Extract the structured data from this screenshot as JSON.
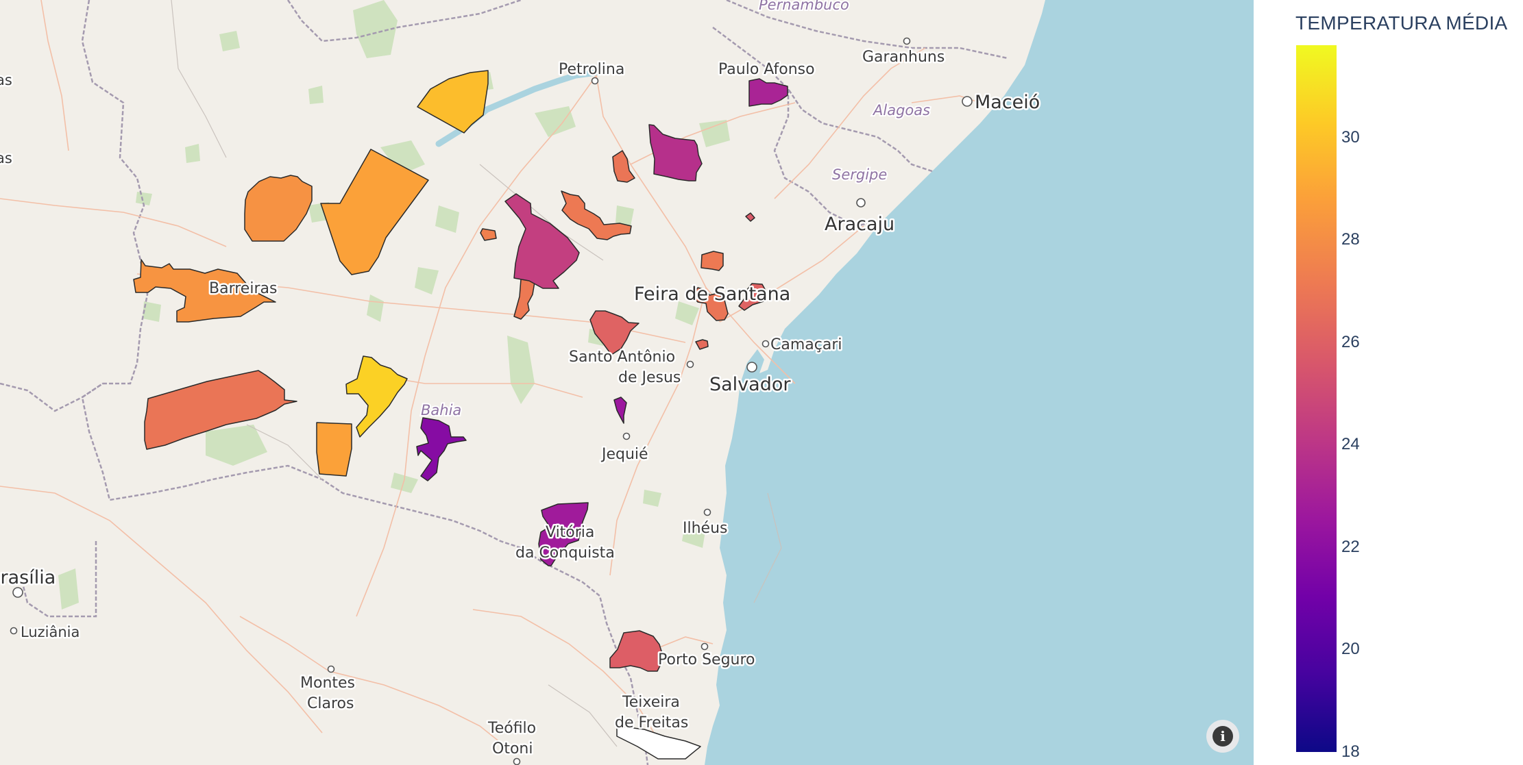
{
  "map": {
    "places": [
      {
        "id": "petrolina",
        "label": "Petrolina"
      },
      {
        "id": "paulo-afonso",
        "label": "Paulo Afonso"
      },
      {
        "id": "garanhuns",
        "label": "Garanhuns"
      },
      {
        "id": "maceio",
        "label": "Maceió"
      },
      {
        "id": "aracaju",
        "label": "Aracaju"
      },
      {
        "id": "feira-de-santana",
        "label": "Feira de Santana"
      },
      {
        "id": "camacari",
        "label": "Camaçari"
      },
      {
        "id": "santo-antonio-1",
        "label": "Santo Antônio"
      },
      {
        "id": "santo-antonio-2",
        "label": "de Jesus"
      },
      {
        "id": "salvador",
        "label": "Salvador"
      },
      {
        "id": "jequie",
        "label": "Jequié"
      },
      {
        "id": "ilheus",
        "label": "Ilhéus"
      },
      {
        "id": "vitoria-1",
        "label": "Vitória"
      },
      {
        "id": "vitoria-2",
        "label": "da Conquista"
      },
      {
        "id": "porto-seguro",
        "label": "Porto Seguro"
      },
      {
        "id": "teixeira-1",
        "label": "Teixeira"
      },
      {
        "id": "teixeira-2",
        "label": "de Freitas"
      },
      {
        "id": "montes-1",
        "label": "Montes"
      },
      {
        "id": "montes-2",
        "label": "Claros"
      },
      {
        "id": "teofilo-1",
        "label": "Teófilo"
      },
      {
        "id": "teofilo-2",
        "label": "Otoni"
      },
      {
        "id": "brasilia",
        "label": "Brasília"
      },
      {
        "id": "luziania",
        "label": "Luziânia"
      },
      {
        "id": "barreiras",
        "label": "Barreiras"
      },
      {
        "id": "frag-1",
        "label": "as"
      },
      {
        "id": "frag-2",
        "label": "as"
      }
    ],
    "regions": [
      {
        "id": "pernambuco",
        "label": "Pernambuco"
      },
      {
        "id": "alagoas",
        "label": "Alagoas"
      },
      {
        "id": "sergipe",
        "label": "Sergipe"
      },
      {
        "id": "bahia",
        "label": "Bahia"
      }
    ],
    "municipalities": [
      {
        "id": "m01",
        "value": 29.8
      },
      {
        "id": "m02",
        "value": 28.2
      },
      {
        "id": "m03",
        "value": 28.8
      },
      {
        "id": "m04",
        "value": 28.3
      },
      {
        "id": "m05",
        "value": 27.0
      },
      {
        "id": "m06",
        "value": 30.5
      },
      {
        "id": "m07",
        "value": 28.8
      },
      {
        "id": "m08",
        "value": 21.8
      },
      {
        "id": "m09",
        "value": 27.5
      },
      {
        "id": "m10",
        "value": 27.2
      },
      {
        "id": "m11",
        "value": 24.5
      },
      {
        "id": "m12",
        "value": 23.8
      },
      {
        "id": "m13",
        "value": 27.0
      },
      {
        "id": "m14",
        "value": 23.2
      },
      {
        "id": "m15",
        "value": 27.2
      },
      {
        "id": "m16",
        "value": 24.3
      },
      {
        "id": "m17",
        "value": 27.2
      },
      {
        "id": "m18",
        "value": 27.0
      },
      {
        "id": "m19",
        "value": 26.2
      },
      {
        "id": "m20",
        "value": 26.2
      },
      {
        "id": "m21",
        "value": 26.6
      },
      {
        "id": "m22",
        "value": 25.8
      },
      {
        "id": "m23",
        "value": 22.6
      },
      {
        "id": "m24",
        "value": 22.8
      },
      {
        "id": "m25",
        "value": 26.0
      },
      {
        "id": "m26",
        "value": null
      }
    ]
  },
  "legend": {
    "title": "TEMPERATURA MÉDIA",
    "ticks": [
      "30",
      "28",
      "26",
      "24",
      "22",
      "20",
      "18"
    ],
    "range": [
      18,
      31.8
    ],
    "colorscale": [
      "#0d0887",
      "#46039f",
      "#7201a8",
      "#9c179e",
      "#bd3786",
      "#d8576b",
      "#ed7953",
      "#fb9f3a",
      "#fdca26",
      "#f0f921"
    ]
  },
  "info_icon": "info-icon"
}
